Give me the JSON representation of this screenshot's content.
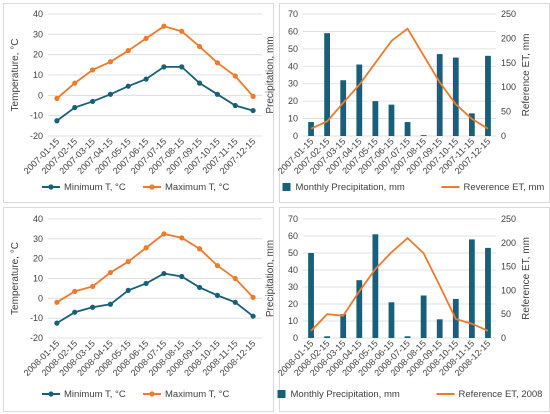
{
  "colors": {
    "min_t": "#17607a",
    "max_t": "#f07a2a",
    "precip": "#17607a",
    "et": "#f07a2a",
    "grid": "#d9d9d9",
    "text": "#404040"
  },
  "chart_data": [
    {
      "type": "line",
      "categories": [
        "2007-01-15",
        "2007-02-15",
        "2007-03-15",
        "2007-04-15",
        "2007-05-15",
        "2007-06-15",
        "2007-07-15",
        "2007-08-15",
        "2007-09-15",
        "2007-10-15",
        "2007-11-15",
        "2007-12-15"
      ],
      "series": [
        {
          "name": "Minimum T, °C",
          "values": [
            -12.5,
            -6.0,
            -3.0,
            0.5,
            4.5,
            8.0,
            14.0,
            14.0,
            6.0,
            0.5,
            -5.0,
            -7.5
          ]
        },
        {
          "name": "Maximum T, °C",
          "values": [
            -1.5,
            6.0,
            12.5,
            16.5,
            22.0,
            28.0,
            34.0,
            31.5,
            24.0,
            16.0,
            9.5,
            -0.5
          ]
        }
      ],
      "ylabel": "Temperature, °C",
      "ylim": [
        -20,
        40
      ],
      "yticks": [
        -20,
        -10,
        0,
        10,
        20,
        30,
        40
      ],
      "legend": "bottom",
      "grid": true
    },
    {
      "type": "bar",
      "categories": [
        "2007-01-15",
        "2007-02-15",
        "2007-03-15",
        "2007-04-15",
        "2007-05-15",
        "2007-06-15",
        "2007-07-15",
        "2007-08-15",
        "2007-09-15",
        "2007-10-15",
        "2007-11-15",
        "2007-12-15"
      ],
      "series": [
        {
          "name": "Monthly Precipitation, mm",
          "type": "bar",
          "axis": "left",
          "values": [
            8,
            59,
            32,
            41,
            20,
            18,
            8,
            0.5,
            47,
            45,
            13,
            46
          ]
        },
        {
          "name": "Reverence ET, mm",
          "type": "line",
          "axis": "right",
          "values": [
            15,
            30,
            68,
            105,
            150,
            195,
            220,
            165,
            110,
            65,
            35,
            15
          ]
        }
      ],
      "ylabel": "Precipitation, mm",
      "y2label": "Reference ET, mm",
      "ylim": [
        0,
        70
      ],
      "yticks": [
        0,
        10,
        20,
        30,
        40,
        50,
        60,
        70
      ],
      "y2lim": [
        0,
        250
      ],
      "y2ticks": [
        0,
        50,
        100,
        150,
        200,
        250
      ],
      "legend": "bottom",
      "grid": true
    },
    {
      "type": "line",
      "categories": [
        "2008-01-15",
        "2008-02-15",
        "2008-03-15",
        "2008-04-15",
        "2008-05-15",
        "2008-06-15",
        "2008-07-15",
        "2008-08-15",
        "2008-09-15",
        "2008-10-15",
        "2008-11-15",
        "2008-12-15"
      ],
      "series": [
        {
          "name": "Minimum T, °C",
          "values": [
            -12.5,
            -7.0,
            -4.5,
            -3.0,
            4.0,
            7.5,
            12.5,
            11.0,
            5.5,
            1.5,
            -2.0,
            -9.0
          ]
        },
        {
          "name": "Maximum T, °C",
          "values": [
            -2.0,
            3.5,
            6.0,
            13.0,
            18.5,
            25.5,
            32.5,
            30.5,
            25.0,
            16.5,
            10.0,
            0.5
          ]
        }
      ],
      "ylabel": "Temperature, °C",
      "ylim": [
        -20,
        40
      ],
      "yticks": [
        -20,
        -10,
        0,
        10,
        20,
        30,
        40
      ],
      "legend": "bottom",
      "grid": true
    },
    {
      "type": "bar",
      "categories": [
        "2008-01-15",
        "2008-02-15",
        "2008-03-15",
        "2008-04-15",
        "2008-05-15",
        "2008-06-15",
        "2008-07-15",
        "2008-08-15",
        "2008-09-15",
        "2008-10-15",
        "2008-11-15",
        "2008-12-15"
      ],
      "series": [
        {
          "name": "Monthly Precipitation, mm",
          "type": "bar",
          "axis": "left",
          "values": [
            50,
            1,
            14,
            34,
            61,
            21,
            1,
            25,
            11,
            23,
            58,
            53
          ]
        },
        {
          "name": "Reference ET, 2008",
          "type": "line",
          "axis": "right",
          "values": [
            15,
            50,
            47,
            98,
            145,
            180,
            210,
            178,
            110,
            40,
            30,
            15
          ]
        }
      ],
      "ylabel": "Precipitation, mm",
      "y2label": "Reference ET, mm",
      "ylim": [
        0,
        70
      ],
      "yticks": [
        0,
        10,
        20,
        30,
        40,
        50,
        60,
        70
      ],
      "y2lim": [
        0,
        250
      ],
      "y2ticks": [
        0,
        50,
        100,
        150,
        200,
        250
      ],
      "legend": "bottom",
      "grid": true
    }
  ]
}
